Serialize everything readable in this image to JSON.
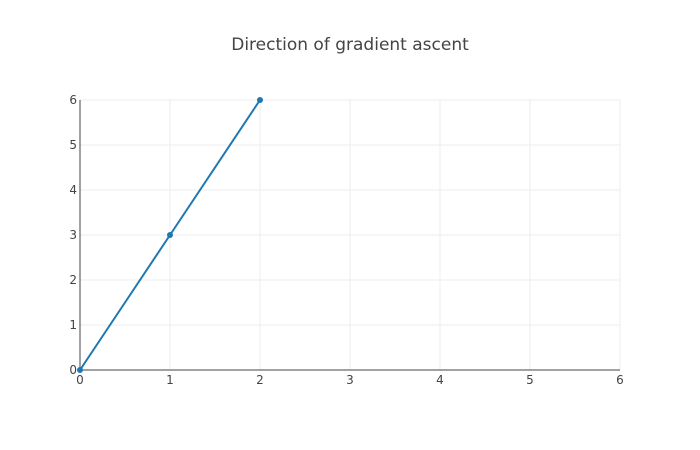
{
  "chart_data": {
    "type": "line",
    "title": "Direction of gradient ascent",
    "xlabel": "",
    "ylabel": "",
    "xlim": [
      0,
      6
    ],
    "ylim": [
      0,
      6
    ],
    "x_ticks": [
      "0",
      "1",
      "2",
      "3",
      "4",
      "5",
      "6"
    ],
    "y_ticks": [
      "0",
      "1",
      "2",
      "3",
      "4",
      "5",
      "6"
    ],
    "grid": true,
    "legend": "none",
    "series": [
      {
        "x": [
          0,
          1,
          2
        ],
        "y": [
          0,
          3,
          6
        ],
        "color": "#1f77b4",
        "mode": "lines+markers"
      }
    ]
  }
}
